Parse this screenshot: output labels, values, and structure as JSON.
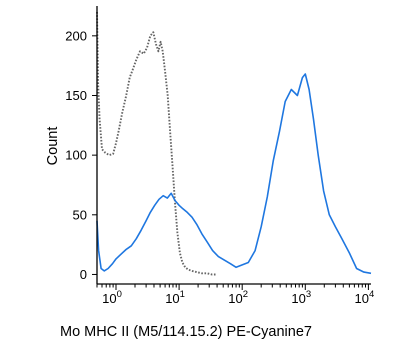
{
  "chart_data": {
    "type": "line",
    "title": "",
    "xlabel": "Mo MHC II (M5/114.15.2) PE-Cyanine7",
    "ylabel": "Count",
    "x_scale": "log",
    "xlim": [
      0.5,
      11000
    ],
    "ylim": [
      -8,
      225
    ],
    "grid": false,
    "y_ticks": [
      {
        "value": 0,
        "label": "0"
      },
      {
        "value": 50,
        "label": "50"
      },
      {
        "value": 100,
        "label": "100"
      },
      {
        "value": 150,
        "label": "150"
      },
      {
        "value": 200,
        "label": "200"
      }
    ],
    "x_ticks": [
      {
        "value": 1,
        "base": "10",
        "exp": "0"
      },
      {
        "value": 10,
        "base": "10",
        "exp": "1"
      },
      {
        "value": 100,
        "base": "10",
        "exp": "2"
      },
      {
        "value": 1000,
        "base": "10",
        "exp": "3"
      },
      {
        "value": 10000,
        "base": "10",
        "exp": "4"
      }
    ],
    "series": [
      {
        "style": "dotted",
        "color": "#666666",
        "x": [
          0.5,
          0.52,
          0.55,
          0.6,
          0.68,
          0.78,
          0.9,
          1.0,
          1.1,
          1.25,
          1.45,
          1.65,
          1.85,
          2.1,
          2.4,
          2.75,
          3.1,
          3.5,
          3.9,
          4.3,
          4.7,
          5.1,
          5.5,
          6.0,
          6.6,
          7.2,
          7.9,
          8.6,
          9.4,
          10.3,
          11.3,
          12.5,
          14.0,
          16.0,
          19.0,
          23.0,
          28.0,
          33.0,
          40.0
        ],
        "y": [
          220,
          160,
          130,
          105,
          102,
          100,
          101,
          110,
          120,
          135,
          150,
          165,
          172,
          180,
          187,
          185,
          190,
          200,
          203,
          193,
          187,
          195,
          187,
          170,
          150,
          120,
          90,
          60,
          35,
          18,
          10,
          6,
          4,
          3,
          2,
          1,
          1,
          0,
          0
        ]
      },
      {
        "style": "solid",
        "color": "#1f77e0",
        "x": [
          0.5,
          0.53,
          0.58,
          0.65,
          0.75,
          0.88,
          1.0,
          1.2,
          1.45,
          1.75,
          2.1,
          2.5,
          3.0,
          3.5,
          4.1,
          4.8,
          5.6,
          6.5,
          7.5,
          8.6,
          10.0,
          11.5,
          13.5,
          16.0,
          19.0,
          23.0,
          28.0,
          34.0,
          42.0,
          52.0,
          65.0,
          80.0,
          100.0,
          125.0,
          160.0,
          200.0,
          250.0,
          310.0,
          390.0,
          480.0,
          600.0,
          750.0,
          900.0,
          1000.0,
          1150.0,
          1350.0,
          1600.0,
          1950.0,
          2400.0,
          3000.0,
          3800.0,
          5000.0,
          6500.0,
          8500.0,
          11000.0
        ],
        "y": [
          45,
          20,
          5,
          3,
          5,
          9,
          13,
          17,
          21,
          24,
          30,
          37,
          45,
          52,
          58,
          63,
          66,
          64,
          68,
          62,
          58,
          55,
          52,
          48,
          42,
          34,
          27,
          20,
          15,
          12,
          9,
          6,
          8,
          10,
          20,
          40,
          65,
          95,
          120,
          145,
          155,
          150,
          165,
          168,
          155,
          130,
          100,
          70,
          50,
          40,
          30,
          18,
          5,
          2,
          1
        ]
      }
    ]
  }
}
